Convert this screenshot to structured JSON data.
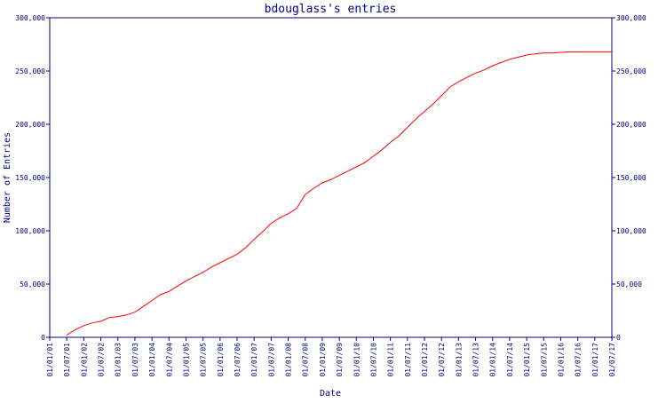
{
  "chart_data": {
    "type": "line",
    "title": "bdouglass's entries",
    "xlabel": "Date",
    "ylabel": "Number of Entries",
    "ylim": [
      0,
      300000
    ],
    "y_ticks": [
      {
        "value": 0,
        "label": "0"
      },
      {
        "value": 50000,
        "label": "50,000"
      },
      {
        "value": 100000,
        "label": "100,000"
      },
      {
        "value": 150000,
        "label": "150,000"
      },
      {
        "value": 200000,
        "label": "200,000"
      },
      {
        "value": 250000,
        "label": "250,000"
      },
      {
        "value": 300000,
        "label": "300,000"
      }
    ],
    "x_tick_labels": [
      "01/01/01",
      "01/07/01",
      "01/01/02",
      "01/07/02",
      "01/01/03",
      "01/07/03",
      "01/01/04",
      "01/07/04",
      "01/01/05",
      "01/07/05",
      "01/01/06",
      "01/07/06",
      "01/01/07",
      "01/07/07",
      "01/01/08",
      "01/07/08",
      "01/01/09",
      "01/07/09",
      "01/01/10",
      "01/07/10",
      "01/01/11",
      "01/07/11",
      "01/01/12",
      "01/07/12",
      "01/01/13",
      "01/07/13",
      "01/01/14",
      "01/07/14",
      "01/01/15",
      "01/07/15",
      "01/01/16",
      "01/07/16",
      "01/01/17",
      "01/07/17"
    ],
    "grid": false,
    "legend": false,
    "colors": {
      "axis": "#000080",
      "line": "#ff0000",
      "text": "#000080"
    },
    "series": [
      {
        "x": [
          "2001-07-01",
          "2001-10-01",
          "2002-01-01",
          "2002-04-01",
          "2002-07-01",
          "2002-10-01",
          "2003-01-01",
          "2003-04-01",
          "2003-07-01",
          "2003-10-01",
          "2004-01-01",
          "2004-04-01",
          "2004-07-01",
          "2004-10-01",
          "2005-01-01",
          "2005-04-01",
          "2005-07-01",
          "2005-10-01",
          "2006-01-01",
          "2006-04-01",
          "2006-07-01",
          "2006-10-01",
          "2007-01-01",
          "2007-04-01",
          "2007-07-01",
          "2007-10-01",
          "2008-01-01",
          "2008-04-01",
          "2008-07-01",
          "2008-10-01",
          "2009-01-01",
          "2009-04-01",
          "2009-07-01",
          "2009-10-01",
          "2010-01-01",
          "2010-04-01",
          "2010-07-01",
          "2010-10-01",
          "2011-01-01",
          "2011-04-01",
          "2011-07-01",
          "2011-10-01",
          "2012-01-01",
          "2012-04-01",
          "2012-07-01",
          "2012-10-01",
          "2013-01-01",
          "2013-04-01",
          "2013-07-01",
          "2013-10-01",
          "2014-01-01",
          "2014-04-01",
          "2014-07-01",
          "2014-10-01",
          "2015-01-01",
          "2015-04-01",
          "2015-07-01",
          "2015-10-01",
          "2016-01-01",
          "2016-04-01",
          "2016-07-01",
          "2016-10-01",
          "2017-01-01",
          "2017-04-01",
          "2017-07-01",
          "2017-08-01"
        ],
        "values": [
          2000,
          7000,
          11000,
          13500,
          15000,
          18500,
          19500,
          21000,
          23500,
          29000,
          34500,
          40000,
          43000,
          48000,
          53000,
          57000,
          61000,
          66000,
          70000,
          74000,
          78000,
          84000,
          92000,
          99000,
          107000,
          112000,
          116000,
          121000,
          134000,
          140000,
          145000,
          148000,
          152000,
          156000,
          160000,
          164000,
          170000,
          176000,
          183000,
          189000,
          197000,
          205000,
          212000,
          219000,
          227000,
          235000,
          240000,
          244000,
          248000,
          251000,
          255000,
          258000,
          261000,
          263000,
          265000,
          266000,
          267000,
          267000,
          267500,
          268000,
          268000,
          268000,
          268000,
          268000,
          268000,
          268000
        ]
      }
    ]
  }
}
